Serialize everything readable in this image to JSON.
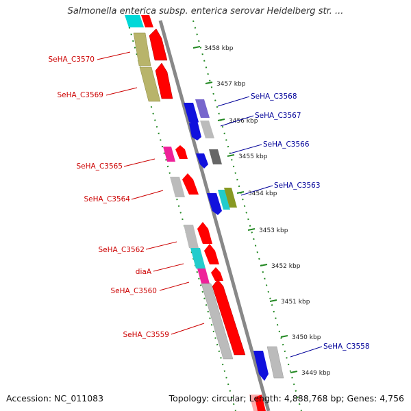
{
  "title": "Salmonella enterica subsp. enterica serovar Heidelberg str. ...",
  "footer": {
    "accession": "Accession: NC_011083",
    "summary": "Topology: circular; Length: 4,888,768 bp; Genes: 4,756"
  },
  "colors": {
    "left_label": "#cc0000",
    "right_label": "#000099",
    "tick": "#228822",
    "backbone": "#888888",
    "forward_gene": "#ff0000",
    "reverse_gene": "#0000ee"
  },
  "ticks": [
    "3458 kbp",
    "3457 kbp",
    "3456 kbp",
    "3455 kbp",
    "3454 kbp",
    "3453 kbp",
    "3452 kbp",
    "3451 kbp",
    "3450 kbp",
    "3449 kbp"
  ],
  "left_labels": [
    "SeHA_C3570",
    "SeHA_C3569",
    "SeHA_C3565",
    "SeHA_C3564",
    "SeHA_C3562",
    "diaA",
    "SeHA_C3560",
    "SeHA_C3559"
  ],
  "right_labels": [
    "SeHA_C3568",
    "SeHA_C3567",
    "SeHA_C3566",
    "SeHA_C3563",
    "SeHA_C3558"
  ]
}
